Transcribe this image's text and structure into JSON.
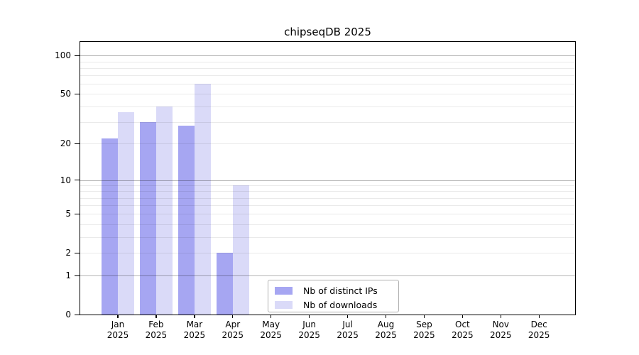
{
  "figure": {
    "title": "chipseqDB 2025"
  },
  "chart_data": {
    "type": "bar",
    "title": "chipseqDB 2025",
    "year_label": "2025",
    "categories": [
      "Jan",
      "Feb",
      "Mar",
      "Apr",
      "May",
      "Jun",
      "Jul",
      "Aug",
      "Sep",
      "Oct",
      "Nov",
      "Dec"
    ],
    "series": [
      {
        "name": "Nb of distinct IPs",
        "color": "#a6a6f2",
        "values": [
          22,
          30,
          28,
          2,
          0,
          0,
          0,
          0,
          0,
          0,
          0,
          0
        ]
      },
      {
        "name": "Nb of downloads",
        "color": "#dadaf8",
        "values": [
          36,
          40,
          60,
          9,
          0,
          0,
          0,
          0,
          0,
          0,
          0,
          0
        ]
      }
    ],
    "xlabel": "",
    "ylabel": "",
    "yscale": "symlog (position proportional to log1p(value))",
    "ylim": [
      0,
      128
    ],
    "yticks": [
      0,
      1,
      2,
      5,
      10,
      20,
      50,
      100
    ],
    "grid_major_values": [
      1,
      10,
      100
    ],
    "grid_minor_values": [
      2,
      3,
      4,
      5,
      6,
      7,
      8,
      9,
      20,
      30,
      40,
      50,
      60,
      70,
      80,
      90
    ],
    "grid": "on",
    "legend_position": "inside bottom-center",
    "colors": {
      "bar_distinct_ips": "#a6a6f2",
      "bar_downloads": "#dadaf8",
      "grid_major": "#b5b5b5",
      "grid_minor": "#eaeaea",
      "spine": "#000000"
    }
  },
  "legend": {
    "items": [
      {
        "label": "Nb of distinct IPs"
      },
      {
        "label": "Nb of downloads"
      }
    ]
  }
}
